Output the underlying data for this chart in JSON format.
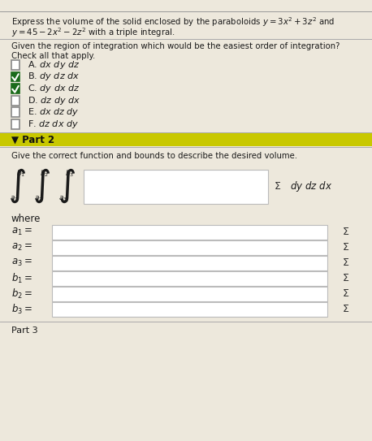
{
  "bg_color": "#ede8dc",
  "header_text_line1": "Express the volume of the solid enclosed by the paraboloids $y = 3x^2 + 3z^2$ and",
  "header_text_line2": "$y = 45 - 2x^2 - 2z^2$ with a triple integral.",
  "question1a": "Given the region of integration which would be the easiest order of integration?",
  "question1b": "Check all that apply.",
  "options": [
    {
      "label": "A. $dx\\ dy\\ dz$",
      "checked": false
    },
    {
      "label": "B. $dy\\ dz\\ dx$",
      "checked": true
    },
    {
      "label": "C. $dy\\ dx\\ dz$",
      "checked": true
    },
    {
      "label": "D. $dz\\ dy\\ dx$",
      "checked": false
    },
    {
      "label": "E. $dx\\ dz\\ dy$",
      "checked": false
    },
    {
      "label": "F. $dz\\ dx\\ dy$",
      "checked": false
    }
  ],
  "part2_label": "▼ Part 2",
  "part2_bg": "#c8c800",
  "part2_question": "Give the correct function and bounds to describe the desired volume.",
  "integral_order": "$dy\\ dz\\ dx$",
  "where_label": "where",
  "bound_labels": [
    "$a_1 =$",
    "$a_2 =$",
    "$a_3 =$",
    "$b_1 =$",
    "$b_2 =$",
    "$b_3 =$"
  ],
  "part3_label": "Part 3",
  "checkbox_color_checked": "#1a6b1a",
  "checkbox_color_unchecked": "#888888",
  "text_color": "#1a1a1a",
  "input_bg": "#ffffff",
  "input_border": "#bbbbbb"
}
